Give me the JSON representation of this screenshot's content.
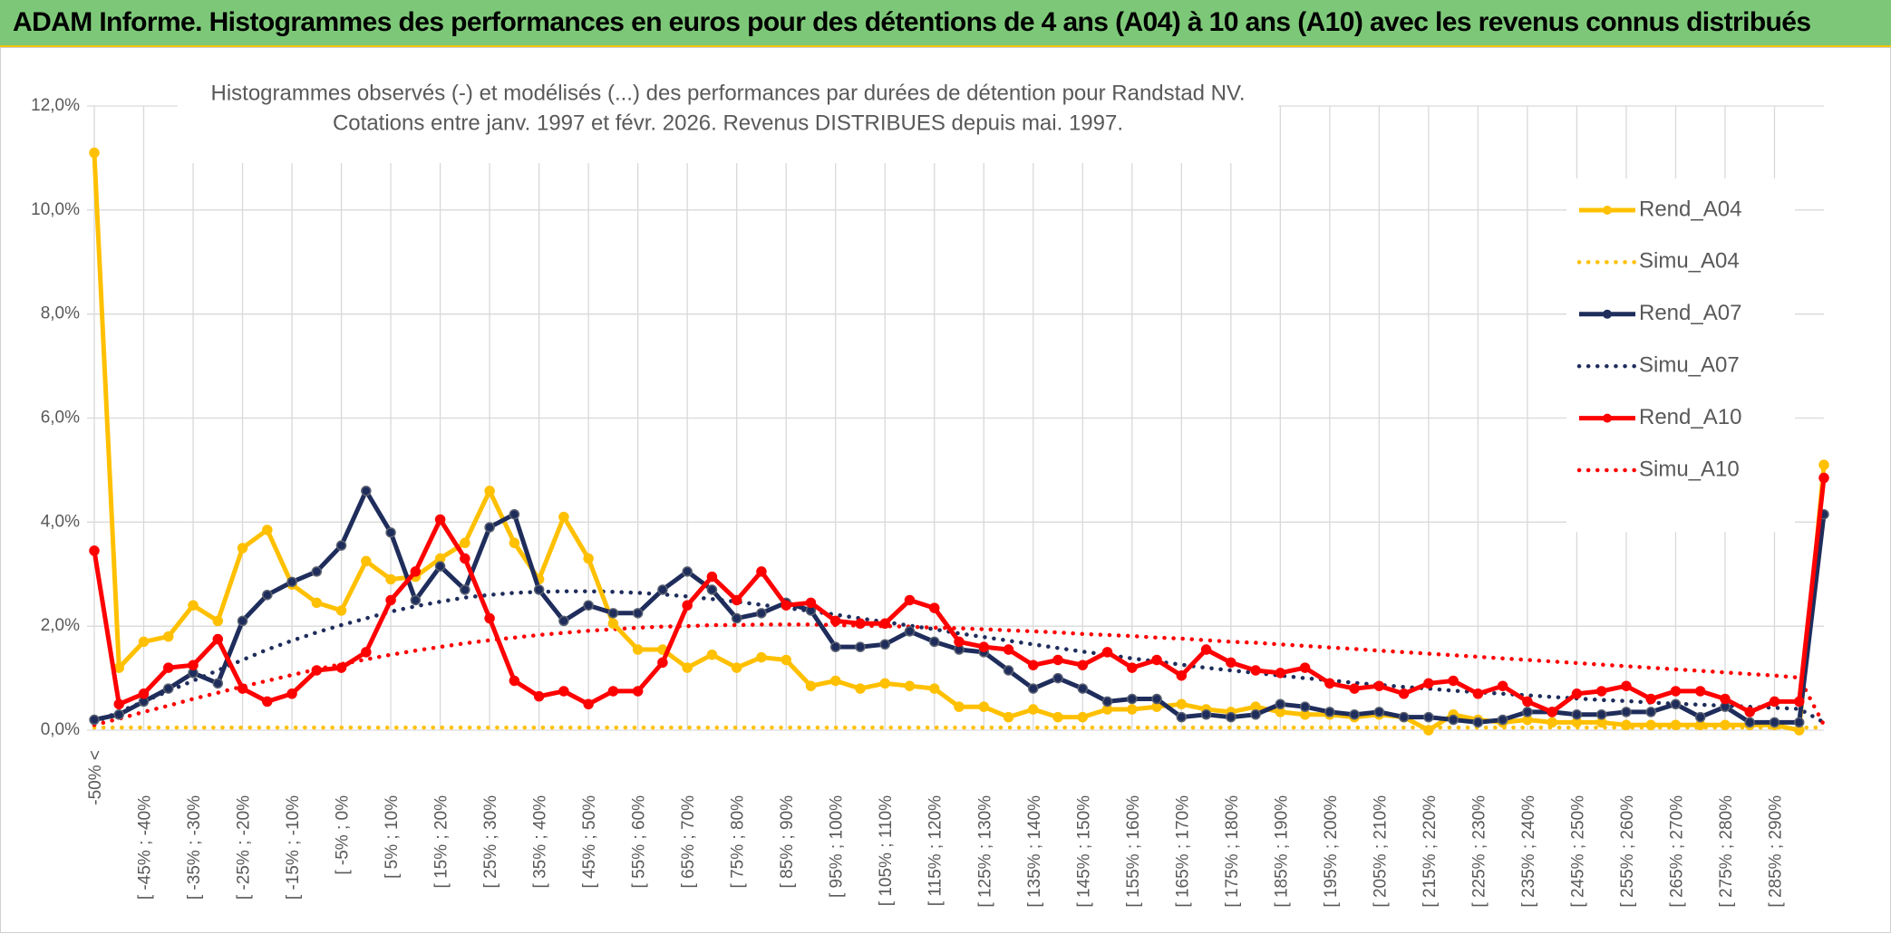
{
  "header": {
    "title": "ADAM Informe. Histogrammes des performances en euros pour des détentions de 4 ans (A04) à 10 ans (A10) avec les revenus connus distribués"
  },
  "chart_data": {
    "type": "line",
    "title": "Histogrammes observés (-) et modélisés (...) des performances par durées de détention pour Randstad NV.",
    "subtitle": "Cotations entre janv. 1997 et févr. 2026. Revenus DISTRIBUES depuis mai. 1997.",
    "xlabel": "",
    "ylabel": "",
    "ylim": [
      0,
      12
    ],
    "y_ticks": [
      "0,0%",
      "2,0%",
      "4,0%",
      "6,0%",
      "8,0%",
      "10,0%",
      "12,0%"
    ],
    "grid": true,
    "legend_position": "right",
    "x_tick_labels": [
      "-50% <",
      "[ -45% ; -40%",
      "[ -35% ; -30%",
      "[ -25% ; -20%",
      "[ -15% ; -10%",
      "[ -5% ; 0%",
      "[ 5% ; 10%",
      "[ 15% ; 20%",
      "[ 25% ; 30%",
      "[ 35% ; 40%",
      "[ 45% ; 50%",
      "[ 55% ; 60%",
      "[ 65% ; 70%",
      "[ 75% ; 80%",
      "[ 85% ; 90%",
      "[ 95% ; 100%",
      "[ 105% ; 110%",
      "[ 115% ; 120%",
      "[ 125% ; 130%",
      "[ 135% ; 140%",
      "[ 145% ; 150%",
      "[ 155% ; 160%",
      "[ 165% ; 170%",
      "[ 175% ; 180%",
      "[ 185% ; 190%",
      "[ 195% ; 200%",
      "[ 205% ; 210%",
      "[ 215% ; 220%",
      "[ 225% ; 230%",
      "[ 235% ; 240%",
      "[ 245% ; 250%",
      "[ 255% ; 260%",
      "[ 265% ; 270%",
      "[ 275% ; 280%",
      "[ 285% ; 290%"
    ],
    "point_count": 71,
    "series": [
      {
        "name": "Rend_A04",
        "color": "#ffc000",
        "style": "solid",
        "markers": true,
        "values": [
          11.1,
          1.2,
          1.7,
          1.8,
          2.4,
          2.1,
          3.5,
          3.85,
          2.8,
          2.45,
          2.3,
          3.25,
          2.9,
          2.95,
          3.3,
          3.6,
          4.6,
          3.6,
          2.9,
          4.1,
          3.3,
          2.05,
          1.55,
          1.55,
          1.2,
          1.45,
          1.2,
          1.4,
          1.35,
          0.85,
          0.95,
          0.8,
          0.9,
          0.85,
          0.8,
          0.45,
          0.45,
          0.25,
          0.4,
          0.25,
          0.25,
          0.4,
          0.4,
          0.45,
          0.5,
          0.4,
          0.35,
          0.45,
          0.35,
          0.3,
          0.3,
          0.25,
          0.3,
          0.25,
          0.0,
          0.3,
          0.2,
          0.15,
          0.2,
          0.15,
          0.15,
          0.15,
          0.1,
          0.1,
          0.1,
          0.1,
          0.1,
          0.1,
          0.1,
          0.0,
          5.1
        ]
      },
      {
        "name": "Simu_A04",
        "color": "#ffc000",
        "style": "dotted",
        "markers": false,
        "values": [
          0.05,
          0.05,
          0.05,
          0.05,
          0.05,
          0.05,
          0.05,
          0.05,
          0.05,
          0.05,
          0.05,
          0.05,
          0.05,
          0.05,
          0.05,
          0.05,
          0.05,
          0.05,
          0.05,
          0.05,
          0.05,
          0.05,
          0.05,
          0.05,
          0.05,
          0.05,
          0.05,
          0.05,
          0.05,
          0.05,
          0.05,
          0.05,
          0.05,
          0.05,
          0.05,
          0.05,
          0.05,
          0.05,
          0.05,
          0.05,
          0.05,
          0.05,
          0.05,
          0.05,
          0.05,
          0.05,
          0.05,
          0.05,
          0.05,
          0.05,
          0.05,
          0.05,
          0.05,
          0.05,
          0.05,
          0.05,
          0.05,
          0.05,
          0.05,
          0.05,
          0.05,
          0.05,
          0.05,
          0.05,
          0.05,
          0.05,
          0.05,
          0.05,
          0.05,
          0.05,
          0.05
        ]
      },
      {
        "name": "Rend_A07",
        "color": "#1f2d5c",
        "style": "solid",
        "markers": true,
        "values": [
          0.2,
          0.3,
          0.55,
          0.8,
          1.1,
          0.9,
          2.1,
          2.6,
          2.85,
          3.05,
          3.55,
          4.6,
          3.8,
          2.5,
          3.15,
          2.7,
          3.9,
          4.15,
          2.7,
          2.1,
          2.4,
          2.25,
          2.25,
          2.7,
          3.05,
          2.7,
          2.15,
          2.25,
          2.45,
          2.3,
          1.6,
          1.6,
          1.65,
          1.9,
          1.7,
          1.55,
          1.5,
          1.15,
          0.8,
          1.0,
          0.8,
          0.55,
          0.6,
          0.6,
          0.25,
          0.3,
          0.25,
          0.3,
          0.5,
          0.45,
          0.35,
          0.3,
          0.35,
          0.25,
          0.25,
          0.2,
          0.15,
          0.2,
          0.35,
          0.35,
          0.3,
          0.3,
          0.35,
          0.35,
          0.5,
          0.25,
          0.45,
          0.15,
          0.15,
          0.15,
          4.15
        ]
      },
      {
        "name": "Simu_A07",
        "color": "#1f2d5c",
        "style": "dotted",
        "markers": false,
        "values": [
          0.15,
          0.35,
          0.55,
          0.75,
          0.95,
          1.15,
          1.35,
          1.55,
          1.72,
          1.88,
          2.02,
          2.15,
          2.28,
          2.38,
          2.47,
          2.55,
          2.6,
          2.64,
          2.66,
          2.67,
          2.67,
          2.66,
          2.64,
          2.61,
          2.57,
          2.52,
          2.47,
          2.41,
          2.35,
          2.29,
          2.22,
          2.15,
          2.08,
          2.01,
          1.94,
          1.86,
          1.79,
          1.72,
          1.65,
          1.58,
          1.51,
          1.45,
          1.38,
          1.32,
          1.26,
          1.2,
          1.15,
          1.1,
          1.05,
          1.0,
          0.96,
          0.91,
          0.87,
          0.83,
          0.8,
          0.76,
          0.73,
          0.7,
          0.67,
          0.64,
          0.61,
          0.58,
          0.56,
          0.53,
          0.51,
          0.49,
          0.47,
          0.45,
          0.43,
          0.41,
          0.15
        ]
      },
      {
        "name": "Rend_A10",
        "color": "#ff0000",
        "style": "solid",
        "markers": true,
        "values": [
          3.45,
          0.5,
          0.7,
          1.2,
          1.25,
          1.75,
          0.8,
          0.55,
          0.7,
          1.15,
          1.2,
          1.5,
          2.5,
          3.05,
          4.05,
          3.3,
          2.15,
          0.95,
          0.65,
          0.75,
          0.5,
          0.75,
          0.75,
          1.3,
          2.4,
          2.95,
          2.5,
          3.05,
          2.4,
          2.45,
          2.1,
          2.05,
          2.05,
          2.5,
          2.35,
          1.7,
          1.6,
          1.55,
          1.25,
          1.35,
          1.25,
          1.5,
          1.2,
          1.35,
          1.05,
          1.55,
          1.3,
          1.15,
          1.1,
          1.2,
          0.9,
          0.8,
          0.85,
          0.7,
          0.9,
          0.95,
          0.7,
          0.85,
          0.55,
          0.35,
          0.7,
          0.75,
          0.85,
          0.6,
          0.75,
          0.75,
          0.6,
          0.35,
          0.55,
          0.55,
          4.85
        ]
      },
      {
        "name": "Simu_A10",
        "color": "#ff0000",
        "style": "dotted",
        "markers": false,
        "values": [
          0.1,
          0.22,
          0.35,
          0.47,
          0.6,
          0.72,
          0.84,
          0.95,
          1.06,
          1.17,
          1.27,
          1.36,
          1.45,
          1.53,
          1.6,
          1.67,
          1.73,
          1.78,
          1.83,
          1.87,
          1.91,
          1.94,
          1.97,
          1.99,
          2.0,
          2.02,
          2.02,
          2.03,
          2.03,
          2.03,
          2.02,
          2.01,
          2.0,
          1.99,
          1.97,
          1.96,
          1.94,
          1.92,
          1.9,
          1.88,
          1.85,
          1.83,
          1.81,
          1.78,
          1.76,
          1.73,
          1.7,
          1.68,
          1.65,
          1.62,
          1.59,
          1.56,
          1.53,
          1.5,
          1.47,
          1.44,
          1.41,
          1.38,
          1.35,
          1.32,
          1.29,
          1.26,
          1.23,
          1.2,
          1.17,
          1.14,
          1.11,
          1.08,
          1.05,
          1.01,
          0.1
        ]
      }
    ]
  }
}
